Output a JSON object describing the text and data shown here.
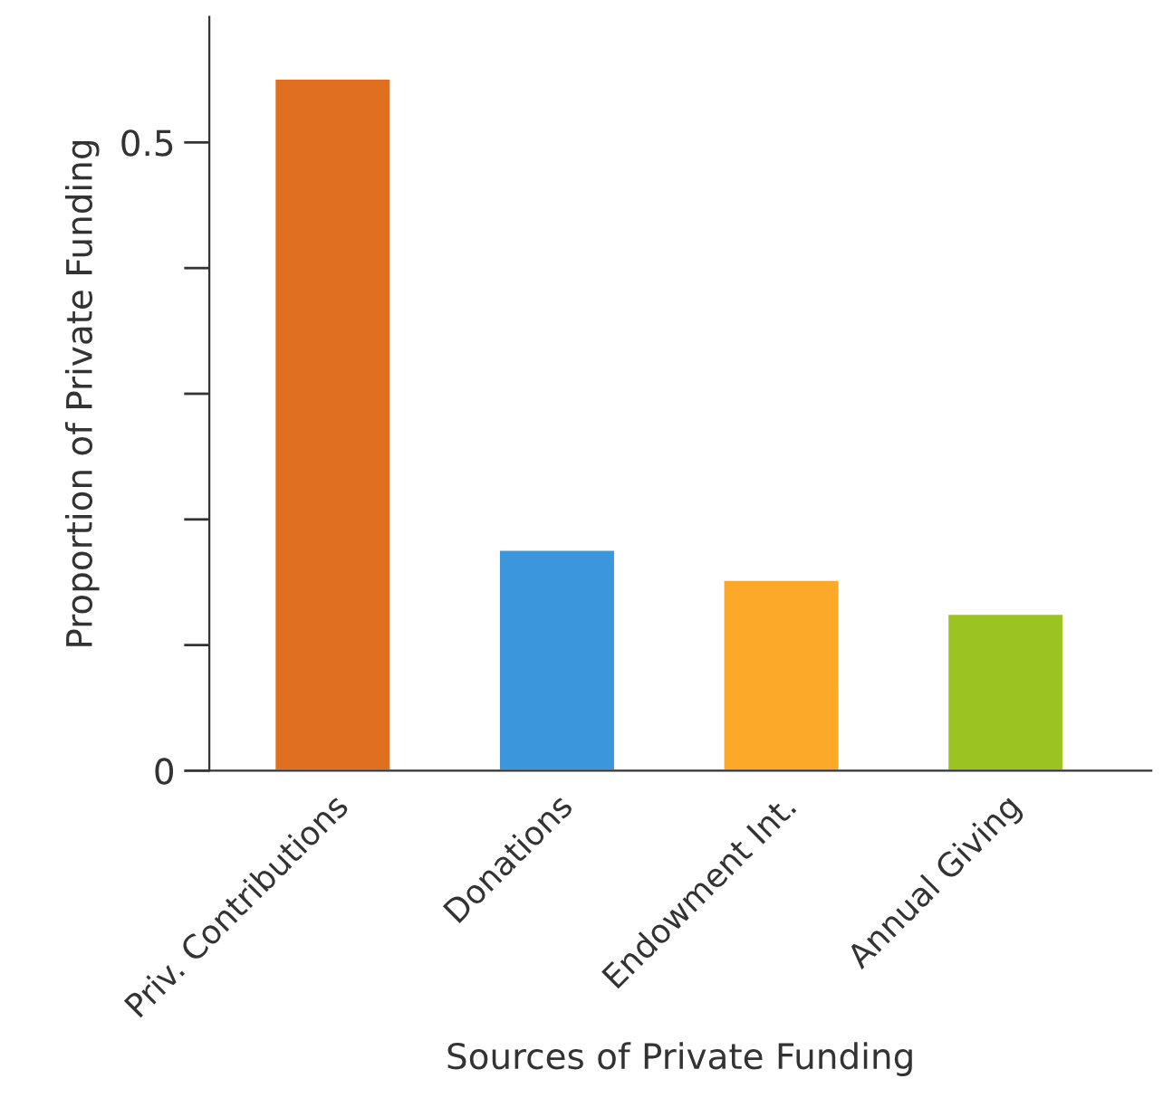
{
  "chart_data": {
    "type": "bar",
    "xlabel": "Sources of Private Funding",
    "ylabel": "Proportion of Private Funding",
    "categories": [
      "Priv. Contributions",
      "Donations",
      "Endowment Int.",
      "Annual Giving"
    ],
    "values": [
      0.551,
      0.176,
      0.152,
      0.125
    ],
    "colors": [
      "#e07020",
      "#3b96dc",
      "#fca828",
      "#9bc322"
    ],
    "ylim": [
      0,
      0.6
    ],
    "yticks": [
      0,
      {
        "value": 0.1,
        "label": null
      },
      {
        "value": 0.2,
        "label": null
      },
      {
        "value": 0.3,
        "label": null
      },
      {
        "value": 0.4,
        "label": null
      },
      0.5
    ],
    "grid": false,
    "legend": false
  }
}
